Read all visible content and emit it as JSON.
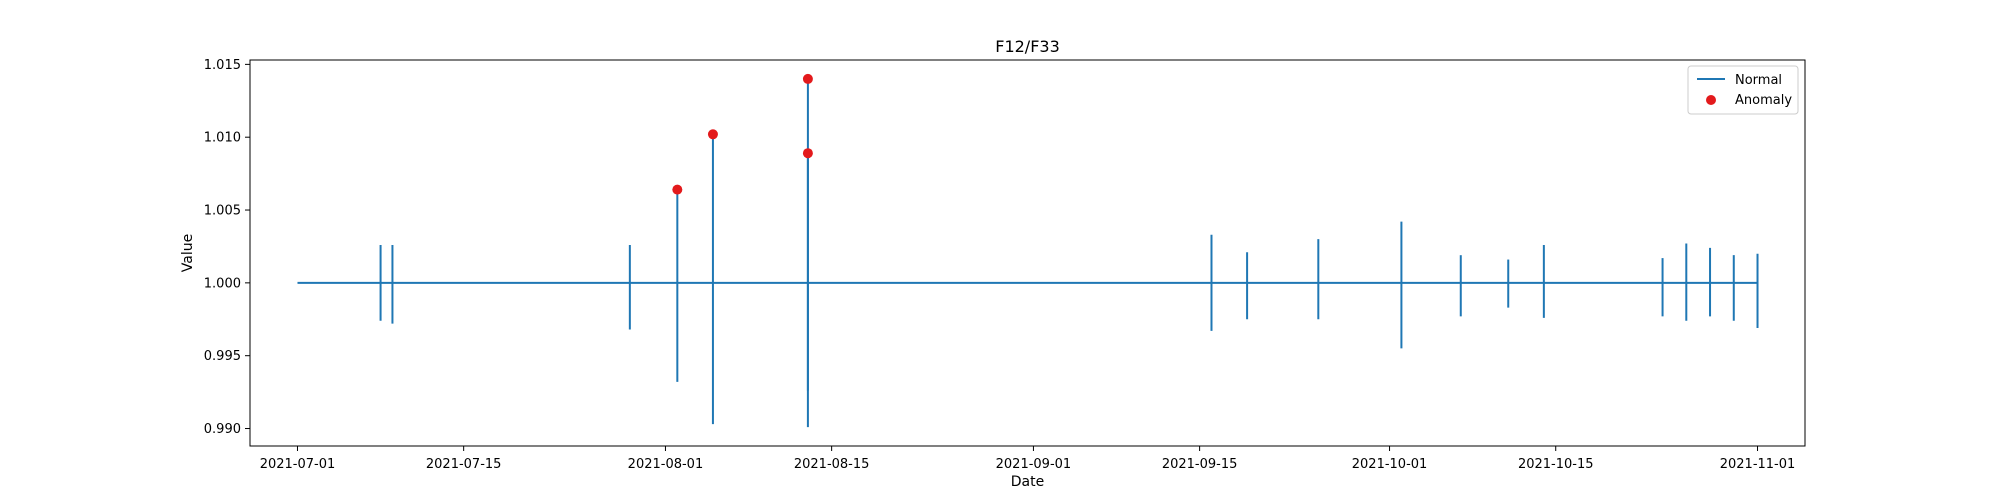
{
  "chart_data": {
    "type": "line",
    "title": "F12/F33",
    "xlabel": "Date",
    "ylabel": "Value",
    "xlim": [
      "2021-06-27",
      "2021-11-05"
    ],
    "ylim": [
      0.9888,
      1.0153
    ],
    "x_ticks": [
      "2021-07-01",
      "2021-07-15",
      "2021-08-01",
      "2021-08-15",
      "2021-09-01",
      "2021-09-15",
      "2021-10-01",
      "2021-10-15",
      "2021-11-01"
    ],
    "y_ticks": [
      "0.990",
      "0.995",
      "1.000",
      "1.005",
      "1.010",
      "1.015"
    ],
    "grid": false,
    "legend_position": "top-right",
    "series": [
      {
        "name": "Normal",
        "mark": "line",
        "color": "#1f77b4",
        "baseline": 1.0,
        "start": "2021-07-01",
        "end": "2021-11-01",
        "spikes": [
          {
            "date": "2021-07-08",
            "high": 1.0026,
            "low": 0.9974
          },
          {
            "date": "2021-07-09",
            "high": 1.0026,
            "low": 0.9972
          },
          {
            "date": "2021-07-29",
            "high": 1.0026,
            "low": 0.9968
          },
          {
            "date": "2021-08-02",
            "high": 1.0064,
            "low": 0.9932
          },
          {
            "date": "2021-08-05",
            "high": 1.0102,
            "low": 0.9903
          },
          {
            "date": "2021-08-13",
            "high": 1.014,
            "low": 0.9901
          },
          {
            "date": "2021-08-13",
            "high": 1.0088,
            "low": 0.9926
          },
          {
            "date": "2021-09-16",
            "high": 1.0033,
            "low": 0.9967
          },
          {
            "date": "2021-09-19",
            "high": 1.0021,
            "low": 0.9975
          },
          {
            "date": "2021-09-25",
            "high": 1.003,
            "low": 0.9975
          },
          {
            "date": "2021-10-02",
            "high": 1.0042,
            "low": 0.9955
          },
          {
            "date": "2021-10-07",
            "high": 1.0019,
            "low": 0.9977
          },
          {
            "date": "2021-10-11",
            "high": 1.0016,
            "low": 0.9983
          },
          {
            "date": "2021-10-14",
            "high": 1.0026,
            "low": 0.9976
          },
          {
            "date": "2021-10-24",
            "high": 1.0017,
            "low": 0.9977
          },
          {
            "date": "2021-10-26",
            "high": 1.0027,
            "low": 0.9974
          },
          {
            "date": "2021-10-28",
            "high": 1.0024,
            "low": 0.9977
          },
          {
            "date": "2021-10-30",
            "high": 1.0019,
            "low": 0.9974
          },
          {
            "date": "2021-11-01",
            "high": 1.002,
            "low": 0.9969
          }
        ]
      },
      {
        "name": "Anomaly",
        "mark": "scatter",
        "color": "#e31a1c",
        "points": [
          {
            "x": "2021-08-02",
            "y": 1.0064
          },
          {
            "x": "2021-08-05",
            "y": 1.0102
          },
          {
            "x": "2021-08-13",
            "y": 1.014
          },
          {
            "x": "2021-08-13",
            "y": 1.0089
          }
        ]
      }
    ]
  }
}
